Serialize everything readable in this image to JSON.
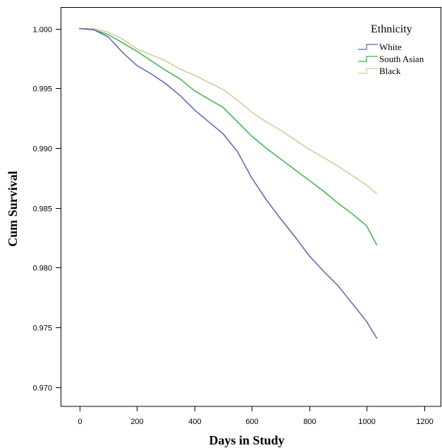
{
  "chart_data": {
    "type": "line",
    "xlabel": "Days in Study",
    "ylabel": "Cum Survival",
    "xlim": [
      -66,
      1260
    ],
    "ylim": [
      0.9684,
      1.0018
    ],
    "xticks": [
      0,
      200,
      400,
      600,
      800,
      1000,
      1200
    ],
    "xtick_labels": [
      "0",
      "200",
      "400",
      "600",
      "800",
      "1000",
      "1200"
    ],
    "yticks": [
      0.97,
      0.975,
      0.98,
      0.985,
      0.99,
      0.995,
      1.0
    ],
    "ytick_labels": [
      "0.970",
      "0.975",
      "0.980",
      "0.985",
      "0.990",
      "0.995",
      "1.000"
    ],
    "grid": false,
    "legend": {
      "title": "Ethnicity",
      "position": "top-right"
    },
    "x": [
      0,
      50,
      100,
      150,
      200,
      250,
      300,
      350,
      400,
      450,
      500,
      550,
      600,
      650,
      700,
      750,
      800,
      850,
      900,
      950,
      1000,
      1035
    ],
    "series": [
      {
        "name": "White",
        "color": "#5a64ab",
        "values": [
          1.0,
          0.9999,
          0.9993,
          0.998,
          0.9969,
          0.9962,
          0.9954,
          0.9944,
          0.9932,
          0.9922,
          0.9912,
          0.9897,
          0.9875,
          0.9857,
          0.9841,
          0.9826,
          0.981,
          0.9797,
          0.9785,
          0.977,
          0.9755,
          0.9741
        ]
      },
      {
        "name": "South Asian",
        "color": "#3db34a",
        "values": [
          1.0,
          0.9999,
          0.9995,
          0.9988,
          0.9981,
          0.9973,
          0.9965,
          0.9958,
          0.9948,
          0.9941,
          0.9934,
          0.9922,
          0.991,
          0.99,
          0.9891,
          0.9882,
          0.9873,
          0.9864,
          0.9854,
          0.9845,
          0.9835,
          0.9819
        ]
      },
      {
        "name": "Black",
        "color": "#cfca9c",
        "values": [
          1.0,
          1.0,
          0.9997,
          0.9991,
          0.9983,
          0.9978,
          0.9973,
          0.9966,
          0.9961,
          0.9955,
          0.9949,
          0.994,
          0.993,
          0.9922,
          0.9915,
          0.9907,
          0.9899,
          0.9892,
          0.9885,
          0.9877,
          0.9869,
          0.9862
        ]
      }
    ]
  }
}
